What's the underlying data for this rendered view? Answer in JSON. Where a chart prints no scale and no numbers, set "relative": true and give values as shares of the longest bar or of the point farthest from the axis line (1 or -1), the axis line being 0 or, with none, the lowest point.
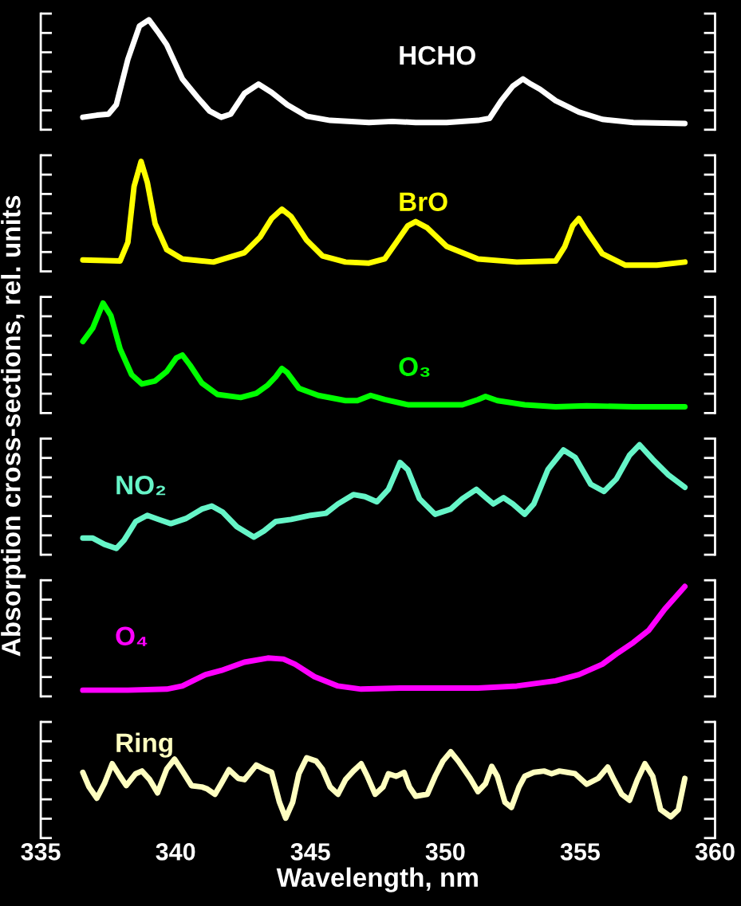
{
  "chart_data": [
    {
      "type": "line",
      "relative": true,
      "xlim": [
        335,
        360
      ],
      "tick_labels": false,
      "series": [
        {
          "name": "HCHO",
          "color": "#ffffff",
          "x": [
            336.56,
            337.08,
            337.51,
            337.8,
            338.23,
            338.66,
            339.01,
            339.38,
            339.67,
            340.25,
            340.82,
            341.26,
            341.69,
            342.04,
            342.55,
            343.07,
            343.56,
            344.14,
            344.86,
            345.73,
            347.17,
            348.03,
            348.9,
            350.05,
            351.21,
            351.64,
            352.07,
            352.5,
            352.88,
            353.17,
            353.51,
            354.09,
            354.95,
            355.82,
            356.97,
            358.88
          ],
          "values": [
            0.06,
            0.08,
            0.09,
            0.18,
            0.62,
            0.94,
            1,
            0.87,
            0.76,
            0.43,
            0.25,
            0.12,
            0.06,
            0.09,
            0.29,
            0.38,
            0.3,
            0.18,
            0.07,
            0.03,
            0.01,
            0.02,
            0.01,
            0.01,
            0.03,
            0.05,
            0.22,
            0.36,
            0.43,
            0.38,
            0.33,
            0.22,
            0.11,
            0.04,
            0.01,
            0
          ]
        }
      ]
    },
    {
      "type": "line",
      "relative": true,
      "xlim": [
        335,
        360
      ],
      "tick_labels": false,
      "series": [
        {
          "name": "BrO",
          "color": "#ffff00",
          "x": [
            336.56,
            337.94,
            338.23,
            338.46,
            338.72,
            338.95,
            339.24,
            339.67,
            340.25,
            341.4,
            342.55,
            343.13,
            343.56,
            343.94,
            344.28,
            344.86,
            345.44,
            346.3,
            347.17,
            347.75,
            348.18,
            348.61,
            348.9,
            349.33,
            350.05,
            351.21,
            352.65,
            354.09,
            354.43,
            354.72,
            354.95,
            355.24,
            355.82,
            356.68,
            357.84,
            358.88
          ],
          "values": [
            0.05,
            0.04,
            0.22,
            0.76,
            1,
            0.8,
            0.4,
            0.15,
            0.06,
            0.03,
            0.12,
            0.27,
            0.45,
            0.54,
            0.47,
            0.24,
            0.09,
            0.03,
            0.02,
            0.06,
            0.22,
            0.38,
            0.42,
            0.36,
            0.18,
            0.06,
            0.03,
            0.04,
            0.18,
            0.38,
            0.45,
            0.33,
            0.11,
            0,
            0,
            0.03
          ]
        }
      ]
    },
    {
      "type": "line",
      "relative": true,
      "xlim": [
        335,
        360
      ],
      "tick_labels": false,
      "ylabel": "Absorption cross-sections, rel. units",
      "series": [
        {
          "name": "O₃",
          "color": "#00ff00",
          "x": [
            336.56,
            336.93,
            337.31,
            337.6,
            337.94,
            338.37,
            338.75,
            339.24,
            339.67,
            340.02,
            340.25,
            340.54,
            340.97,
            341.55,
            342.41,
            342.99,
            343.42,
            343.71,
            343.94,
            344.14,
            344.57,
            345.29,
            346.3,
            346.74,
            347.23,
            347.75,
            348.61,
            350.05,
            350.63,
            351.21,
            351.49,
            351.93,
            352.94,
            354.09,
            355.24,
            356.97,
            358.88
          ],
          "values": [
            0.63,
            0.76,
            1,
            0.88,
            0.56,
            0.31,
            0.22,
            0.25,
            0.34,
            0.47,
            0.5,
            0.4,
            0.23,
            0.12,
            0.09,
            0.13,
            0.21,
            0.29,
            0.37,
            0.33,
            0.18,
            0.11,
            0.06,
            0.06,
            0.11,
            0.07,
            0.02,
            0.02,
            0.02,
            0.07,
            0.1,
            0.06,
            0.02,
            0,
            0.01,
            0,
            0
          ]
        }
      ]
    },
    {
      "type": "line",
      "relative": true,
      "xlim": [
        335,
        360
      ],
      "tick_labels": false,
      "series": [
        {
          "name": "NO₂",
          "color": "#66f5c8",
          "x": [
            336.56,
            336.93,
            337.36,
            337.8,
            338.09,
            338.52,
            338.95,
            339.38,
            339.82,
            340.39,
            340.97,
            341.34,
            341.75,
            342.27,
            342.9,
            343.28,
            343.71,
            344.28,
            345.01,
            345.58,
            346.02,
            346.59,
            347.02,
            347.46,
            347.89,
            348.32,
            348.61,
            349.04,
            349.62,
            350.2,
            350.63,
            351.15,
            351.55,
            351.78,
            352.16,
            352.5,
            352.94,
            353.28,
            353.8,
            354.38,
            354.81,
            355.39,
            355.88,
            356.34,
            356.83,
            357.2,
            357.69,
            358.27,
            358.88
          ],
          "values": [
            0.1,
            0.1,
            0.04,
            0,
            0.08,
            0.26,
            0.32,
            0.28,
            0.24,
            0.29,
            0.38,
            0.41,
            0.35,
            0.21,
            0.11,
            0.17,
            0.26,
            0.28,
            0.32,
            0.34,
            0.43,
            0.52,
            0.5,
            0.45,
            0.57,
            0.83,
            0.76,
            0.48,
            0.33,
            0.38,
            0.48,
            0.57,
            0.48,
            0.43,
            0.49,
            0.43,
            0.33,
            0.43,
            0.76,
            0.95,
            0.88,
            0.62,
            0.55,
            0.67,
            0.9,
            1,
            0.86,
            0.71,
            0.59
          ]
        }
      ]
    },
    {
      "type": "line",
      "relative": true,
      "xlim": [
        335,
        360
      ],
      "tick_labels": false,
      "series": [
        {
          "name": "O₄",
          "color": "#ff00ff",
          "x": [
            336.56,
            338.23,
            339.67,
            340.25,
            341.11,
            341.69,
            342.55,
            343.42,
            344.0,
            344.43,
            345.15,
            346.02,
            346.88,
            348.32,
            349.76,
            351.21,
            352.65,
            354.09,
            354.95,
            355.82,
            356.4,
            356.97,
            357.55,
            358.13,
            358.88
          ],
          "values": [
            0,
            0,
            0.01,
            0.04,
            0.15,
            0.19,
            0.27,
            0.31,
            0.3,
            0.25,
            0.13,
            0.04,
            0.01,
            0.02,
            0.02,
            0.02,
            0.04,
            0.09,
            0.15,
            0.25,
            0.36,
            0.46,
            0.58,
            0.78,
            1
          ]
        }
      ]
    },
    {
      "type": "line",
      "relative": true,
      "xlim": [
        335,
        360
      ],
      "xticks": [
        335,
        340,
        345,
        350,
        355,
        360
      ],
      "tick_labels": "x",
      "xlabel": "Wavelength, nm",
      "series": [
        {
          "name": "Ring",
          "color": "#ffffc0",
          "x": [
            336.56,
            336.79,
            337.08,
            337.36,
            337.65,
            337.94,
            338.17,
            338.52,
            338.75,
            339.04,
            339.33,
            339.67,
            339.96,
            340.25,
            340.59,
            340.97,
            341.17,
            341.46,
            341.69,
            341.98,
            342.32,
            342.55,
            342.99,
            343.28,
            343.56,
            343.85,
            344.08,
            344.34,
            344.57,
            344.86,
            345.21,
            345.44,
            345.73,
            346.02,
            346.3,
            346.59,
            346.88,
            347.11,
            347.4,
            347.69,
            347.89,
            348.18,
            348.47,
            348.67,
            348.9,
            349.33,
            349.62,
            349.91,
            350.2,
            350.48,
            350.92,
            351.21,
            351.49,
            351.72,
            351.93,
            352.21,
            352.45,
            352.73,
            352.94,
            353.28,
            353.66,
            353.94,
            354.23,
            354.52,
            354.81,
            355.24,
            355.67,
            356.02,
            356.25,
            356.54,
            356.83,
            357.12,
            357.4,
            357.69,
            357.98,
            358.36,
            358.64,
            358.88
          ],
          "values": [
            0.69,
            0.47,
            0.3,
            0.52,
            0.82,
            0.63,
            0.49,
            0.67,
            0.71,
            0.58,
            0.38,
            0.74,
            0.89,
            0.71,
            0.49,
            0.47,
            0.44,
            0.36,
            0.52,
            0.73,
            0.6,
            0.58,
            0.8,
            0.74,
            0.69,
            0.24,
            0,
            0.24,
            0.67,
            0.91,
            0.86,
            0.74,
            0.47,
            0.36,
            0.58,
            0.71,
            0.82,
            0.63,
            0.36,
            0.47,
            0.67,
            0.63,
            0.69,
            0.47,
            0.33,
            0.36,
            0.63,
            0.86,
            1,
            0.86,
            0.6,
            0.4,
            0.52,
            0.78,
            0.63,
            0.24,
            0.16,
            0.47,
            0.63,
            0.69,
            0.71,
            0.67,
            0.71,
            0.69,
            0.67,
            0.51,
            0.6,
            0.77,
            0.58,
            0.36,
            0.27,
            0.58,
            0.82,
            0.63,
            0.13,
            0.02,
            0.13,
            0.6
          ]
        }
      ]
    }
  ]
}
